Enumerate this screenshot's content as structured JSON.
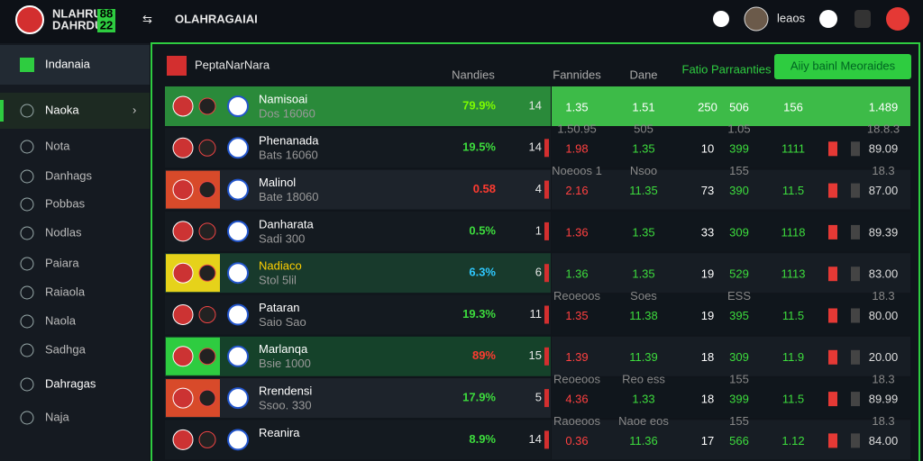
{
  "header": {
    "brand": [
      "NLAHRUA",
      "DAHRDUA"
    ],
    "badge": [
      "88",
      "22"
    ],
    "title": "OLAHRAGAIAI",
    "user": "leaos"
  },
  "sidebar": {
    "items": [
      "Indanaia",
      "Naoka",
      "Nota",
      "Danhags",
      "Pobbas",
      "Nodlas",
      "Paiara",
      "Raiaola",
      "Naola",
      "Sadhga",
      "Dahragas",
      "Naja"
    ]
  },
  "panel": {
    "title": "PeptaNarNara",
    "columns": [
      "Nandies",
      "Fannides",
      "Dane",
      "Fatio Parraanties"
    ],
    "button": "Aiiy bainl Meoraides",
    "rows": [
      {
        "name": "Namisoai",
        "sub": "Dos 16060",
        "pct": "79.9%",
        "num": "14",
        "cells": [
          "1.35",
          "1.51",
          "250",
          "506",
          "156",
          "1.489"
        ],
        "notes": []
      },
      {
        "name": "Phenanada",
        "sub": "Bats 16060",
        "pct": "19.5%",
        "num": "14",
        "cells": [
          "1.98",
          "1.35",
          "10",
          "399",
          "1111",
          "89.09"
        ],
        "notes": [
          "1.50.95",
          "505",
          "1.05",
          "18.8.3"
        ]
      },
      {
        "name": "Malinol",
        "sub": "Bate 18060",
        "pct": "0.58",
        "num": "4",
        "cells": [
          "2.16",
          "11.35",
          "73",
          "390",
          "11.5",
          "87.00"
        ],
        "notes": [
          "Noeoos 1",
          "Nsoo",
          "155",
          "18.3"
        ]
      },
      {
        "name": "Danharata",
        "sub": "Sadi 300",
        "pct": "0.5%",
        "num": "1",
        "cells": [
          "1.36",
          "1.35",
          "33",
          "309",
          "1118",
          "89.39"
        ],
        "notes": []
      },
      {
        "name": "Nadiaco",
        "sub": "Stol 5lil",
        "pct": "6.3%",
        "num": "6",
        "cells": [
          "1.36",
          "1.35",
          "19",
          "529",
          "1113",
          "83.00"
        ],
        "notes": []
      },
      {
        "name": "Pataran",
        "sub": "Saio Sao",
        "pct": "19.3%",
        "num": "11",
        "cells": [
          "1.35",
          "11.38",
          "19",
          "395",
          "11.5",
          "80.00"
        ],
        "notes": [
          "Reoeoos",
          "Soes",
          "ESS",
          "18.3"
        ]
      },
      {
        "name": "Marlanqa",
        "sub": "Bsie 1000",
        "pct": "89%",
        "num": "15",
        "cells": [
          "1.39",
          "11.39",
          "18",
          "309",
          "11.9",
          "20.00"
        ],
        "notes": []
      },
      {
        "name": "Rrendensi",
        "sub": "Ssoo. 330",
        "pct": "17.9%",
        "num": "5",
        "cells": [
          "4.36",
          "1.33",
          "18",
          "399",
          "11.5",
          "89.99"
        ],
        "notes": [
          "Reoeoos",
          "Reo ess",
          "155",
          "18.3"
        ]
      },
      {
        "name": "Reanira",
        "sub": "",
        "pct": "8.9%",
        "num": "14",
        "cells": [
          "0.36",
          "11.36",
          "17",
          "566",
          "1.12",
          "84.00"
        ],
        "notes": [
          "Raoeoos",
          "Naoe eos",
          "155",
          "18.3"
        ]
      }
    ]
  }
}
